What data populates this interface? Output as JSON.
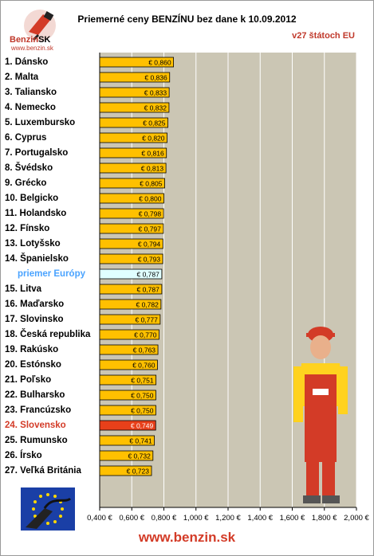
{
  "header": {
    "title": "Priemerné ceny BENZÍNU bez dane k 10.09.2012",
    "subtitle": "v27 štátoch EU"
  },
  "logo": {
    "word_main": "Benzin",
    "word_suffix": "SK",
    "url": "www.benzin.sk"
  },
  "footer": {
    "url": "www.benzin.sk"
  },
  "colors": {
    "bar": "#ffc000",
    "bar_avg": "#e0ffff",
    "bar_highlight": "#e8401a",
    "plot_bg": "#cbc6b4",
    "highlight_text": "#d33b27",
    "avg_text": "#4aa3ff"
  },
  "chart_data": {
    "type": "bar",
    "orientation": "horizontal",
    "title": "Priemerné ceny BENZÍNU bez dane k 10.09.2012",
    "subtitle": "v27 štátoch EU",
    "categories": [
      "1. Dánsko",
      "2. Malta",
      "3. Taliansko",
      "4. Nemecko",
      "5. Luxembursko",
      "6. Cyprus",
      "7. Portugalsko",
      "8. Švédsko",
      "9. Grécko",
      "10. Belgicko",
      "11. Holandsko",
      "12. Fínsko",
      "13. Lotyšsko",
      "14. Španielsko",
      "priemer Európy",
      "15. Litva",
      "16. Maďarsko",
      "17. Slovinsko",
      "18. Česká republika",
      "19. Rakúsko",
      "20. Estónsko",
      "21. Poľsko",
      "22. Bulharsko",
      "23. Francúzsko",
      "24. Slovensko",
      "25. Rumunsko",
      "26. Írsko",
      "27. Veľká Británia"
    ],
    "values": [
      0.86,
      0.836,
      0.833,
      0.832,
      0.825,
      0.82,
      0.816,
      0.813,
      0.805,
      0.8,
      0.798,
      0.797,
      0.794,
      0.793,
      0.787,
      0.787,
      0.782,
      0.777,
      0.77,
      0.763,
      0.76,
      0.751,
      0.75,
      0.75,
      0.749,
      0.741,
      0.732,
      0.723
    ],
    "value_labels": [
      "€ 0,860",
      "€ 0,836",
      "€ 0,833",
      "€ 0,832",
      "€ 0,825",
      "€ 0,820",
      "€ 0,816",
      "€ 0,813",
      "€ 0,805",
      "€ 0,800",
      "€ 0,798",
      "€ 0,797",
      "€ 0,794",
      "€ 0,793",
      "€ 0,787",
      "€ 0,787",
      "€ 0,782",
      "€ 0,777",
      "€ 0,770",
      "€ 0,763",
      "€ 0,760",
      "€ 0,751",
      "€ 0,750",
      "€ 0,750",
      "€ 0,749",
      "€ 0,741",
      "€ 0,732",
      "€ 0,723"
    ],
    "average_category": "priemer Európy",
    "highlight_category": "24. Slovensko",
    "xlim": [
      0.4,
      2.0
    ],
    "x_ticks": [
      0.4,
      0.6,
      0.8,
      1.0,
      1.2,
      1.4,
      1.6,
      1.8,
      2.0
    ],
    "x_tick_labels": [
      "0,400 €",
      "0,600 €",
      "0,800 €",
      "1,000 €",
      "1,200 €",
      "1,400 €",
      "1,600 €",
      "1,800 €",
      "2,000 €"
    ],
    "grid": true,
    "legend": "none"
  }
}
